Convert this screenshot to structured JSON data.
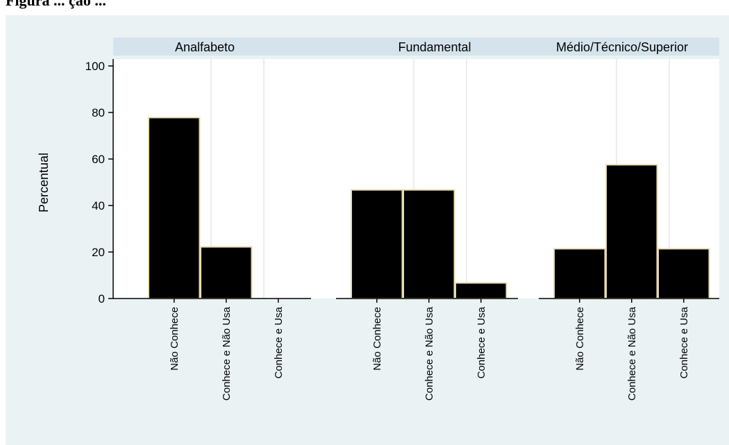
{
  "caption": "Figura ... ção ... ",
  "chart_data": {
    "type": "bar",
    "ylabel": "Percentual",
    "ylim": [
      0,
      100
    ],
    "yticks": [
      0,
      20,
      40,
      60,
      80,
      100
    ],
    "grid": false,
    "colors": {
      "bar_fill": "#000000",
      "bar_stroke": "#e8dcb0",
      "panel_header": "#d5e4ec",
      "plot_bg": "#ffffff",
      "figure_bg": "#eaf2f3",
      "gridline": "#e9eef0"
    },
    "categories": [
      "Não Conhece",
      "Conhece e Não Usa",
      "Conhece e Usa"
    ],
    "panels": [
      {
        "name": "Analfabeto",
        "values": [
          77.8,
          22.2,
          0
        ]
      },
      {
        "name": "Fundamental",
        "values": [
          46.7,
          46.7,
          6.7
        ]
      },
      {
        "name": "Médio/Técnico/Superior",
        "values": [
          21.4,
          57.5,
          21.4
        ]
      }
    ]
  }
}
